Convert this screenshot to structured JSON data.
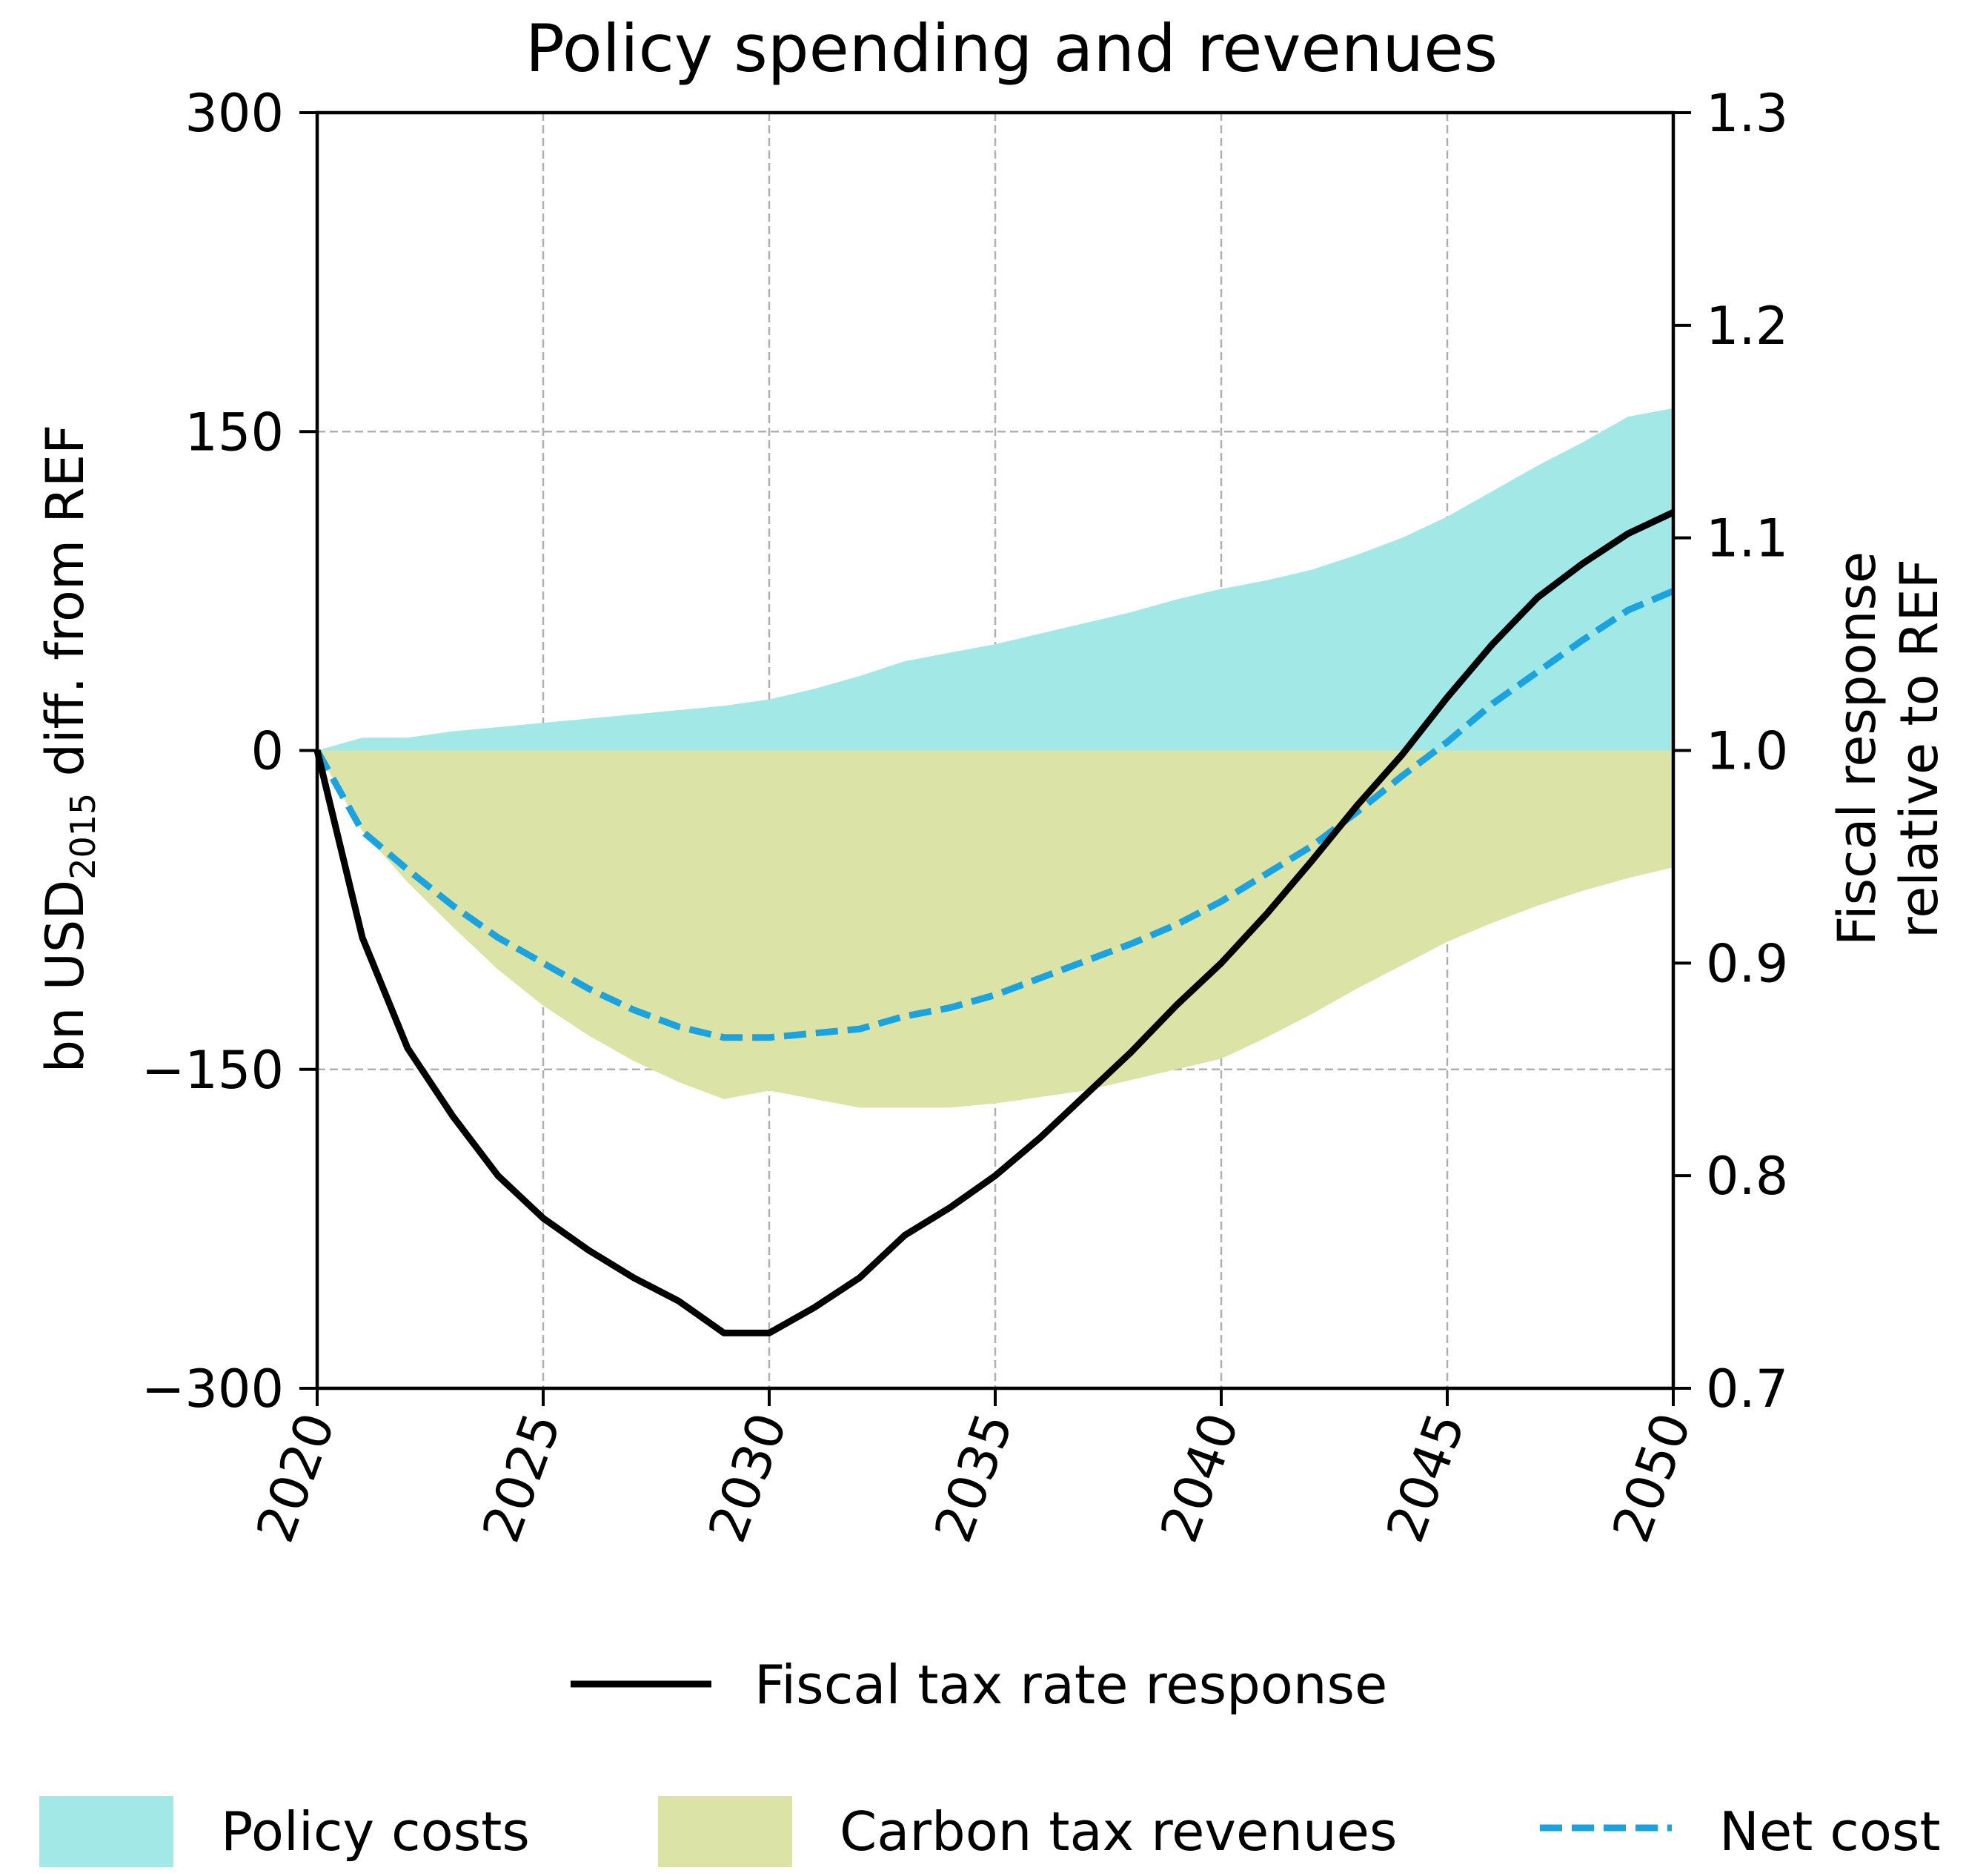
{
  "chart_data": {
    "type": "area",
    "title": "Policy spending and revenues",
    "xlabel": "",
    "ylabel": {
      "prefix": "bn USD",
      "subscript": "2015",
      "suffix": " diff. from REF"
    },
    "y2label": [
      "Fiscal response",
      "relative to REF"
    ],
    "xlim": [
      2020,
      2050
    ],
    "ylim": [
      -300,
      300
    ],
    "y2lim": [
      0.7,
      1.3
    ],
    "xticks": [
      "2020",
      "2025",
      "2030",
      "2035",
      "2040",
      "2045",
      "2050"
    ],
    "yticks": [
      "300",
      "150",
      "0",
      "−150",
      "−300"
    ],
    "yticks_values": [
      300,
      150,
      0,
      -150,
      -300
    ],
    "y2ticks": [
      "1.3",
      "1.2",
      "1.1",
      "1.0",
      "0.9",
      "0.8",
      "0.7"
    ],
    "y2ticks_values": [
      1.3,
      1.2,
      1.1,
      1.0,
      0.9,
      0.8,
      0.7
    ],
    "grid": true,
    "x": [
      2020,
      2021,
      2022,
      2023,
      2024,
      2025,
      2026,
      2027,
      2028,
      2029,
      2030,
      2031,
      2032,
      2033,
      2034,
      2035,
      2036,
      2037,
      2038,
      2039,
      2040,
      2041,
      2042,
      2043,
      2044,
      2045,
      2046,
      2047,
      2048,
      2049,
      2050
    ],
    "series": [
      {
        "name": "Policy costs",
        "kind": "area",
        "axis": "left",
        "color": "#a2e8e6",
        "values": [
          0,
          6,
          6,
          9,
          11,
          13,
          15,
          17,
          19,
          21,
          24,
          29,
          35,
          42,
          46,
          50,
          55,
          60,
          65,
          71,
          76,
          80,
          85,
          92,
          100,
          110,
          122,
          134,
          145,
          157,
          161
        ]
      },
      {
        "name": "Carbon tax revenues",
        "kind": "area",
        "axis": "left",
        "color": "#dbe3a6",
        "values": [
          0,
          -38,
          -62,
          -83,
          -103,
          -120,
          -134,
          -146,
          -156,
          -164,
          -160,
          -164,
          -168,
          -168,
          -168,
          -166,
          -163,
          -160,
          -155,
          -150,
          -145,
          -135,
          -124,
          -112,
          -101,
          -90,
          -81,
          -73,
          -66,
          -60,
          -55
        ]
      },
      {
        "name": "Net cost",
        "kind": "line",
        "style": "dashed",
        "axis": "left",
        "color": "#1ba3e0",
        "values": [
          0,
          -38,
          -56,
          -73,
          -88,
          -100,
          -112,
          -122,
          -130,
          -135,
          -135,
          -133,
          -131,
          -125,
          -121,
          -115,
          -107,
          -99,
          -91,
          -82,
          -71,
          -58,
          -45,
          -29,
          -12,
          4,
          22,
          37,
          52,
          66,
          75
        ]
      },
      {
        "name": "Fiscal tax rate response",
        "kind": "line",
        "style": "solid",
        "axis": "right",
        "color": "#000000",
        "values": [
          1.0,
          0.912,
          0.86,
          0.828,
          0.8,
          0.78,
          0.765,
          0.752,
          0.741,
          0.726,
          0.726,
          0.738,
          0.752,
          0.772,
          0.785,
          0.8,
          0.818,
          0.838,
          0.858,
          0.88,
          0.9,
          0.923,
          0.948,
          0.974,
          0.998,
          1.025,
          1.05,
          1.072,
          1.088,
          1.102,
          1.112
        ]
      }
    ],
    "legend": {
      "placement": "bottom",
      "entries": [
        "Fiscal tax rate response",
        "Policy costs",
        "Carbon tax revenues",
        "Net cost"
      ]
    }
  }
}
